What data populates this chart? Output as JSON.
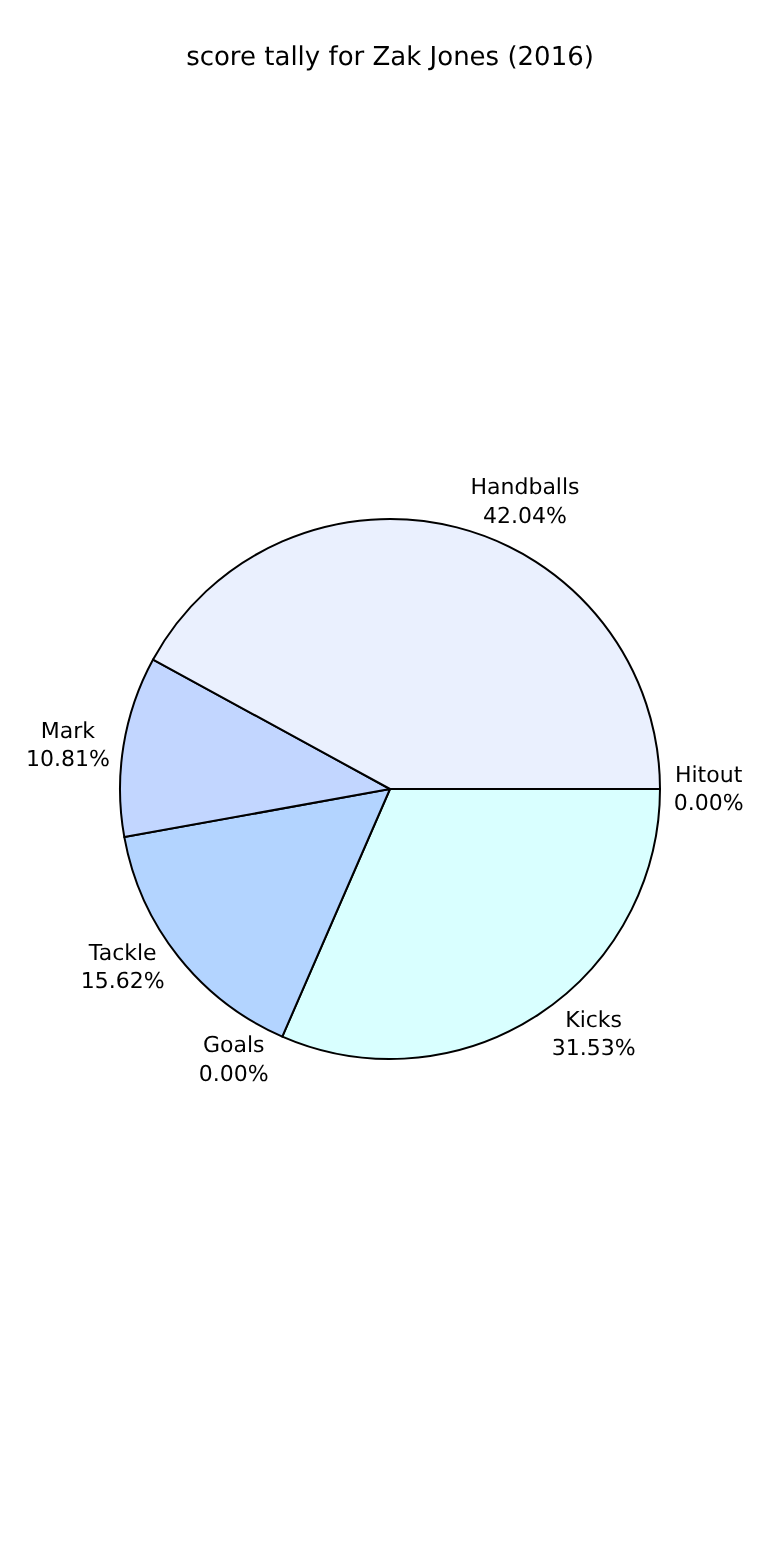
{
  "chart_data": {
    "type": "pie",
    "title": "score tally for Zak Jones (2016)",
    "categories": [
      "Hitout",
      "Kicks",
      "Goals",
      "Tackle",
      "Mark",
      "Handballs"
    ],
    "values": [
      0.0,
      31.53,
      0.0,
      15.62,
      10.81,
      42.04
    ],
    "value_labels": [
      "0.00%",
      "31.53%",
      "0.00%",
      "15.62%",
      "10.81%",
      "42.04%"
    ],
    "colors": [
      "#ffffff",
      "#d9ffff",
      "#ffffff",
      "#b3d4ff",
      "#c2d6ff",
      "#eaf0fe"
    ],
    "legend": false
  }
}
